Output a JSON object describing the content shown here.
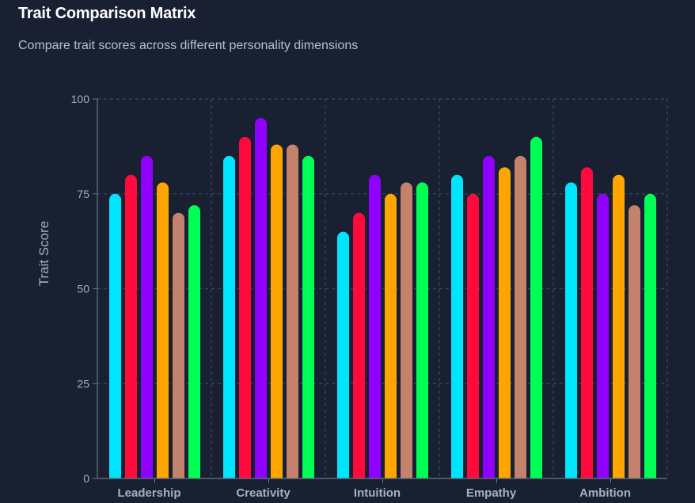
{
  "header": {
    "title": "Trait Comparison Matrix",
    "subtitle": "Compare trait scores across different personality dimensions"
  },
  "chart_data": {
    "type": "bar",
    "categories": [
      "Leadership",
      "Creativity",
      "Intuition",
      "Empathy",
      "Ambition"
    ],
    "series": [
      {
        "color": "#00e5ff",
        "values": [
          75,
          85,
          65,
          80,
          78
        ]
      },
      {
        "color": "#ff0a3c",
        "values": [
          80,
          90,
          70,
          75,
          82
        ]
      },
      {
        "color": "#8f00ff",
        "values": [
          85,
          95,
          80,
          85,
          75
        ]
      },
      {
        "color": "#ffa500",
        "values": [
          78,
          88,
          75,
          82,
          80
        ]
      },
      {
        "color": "#c2826b",
        "values": [
          70,
          88,
          78,
          85,
          72
        ]
      },
      {
        "color": "#00ff55",
        "values": [
          72,
          85,
          78,
          90,
          75
        ]
      }
    ],
    "xlabel": "",
    "ylabel": "Trait Score",
    "ylim": [
      0,
      100
    ],
    "yticks": [
      0,
      25,
      50,
      75,
      100
    ],
    "grid": true,
    "legend": "none"
  }
}
